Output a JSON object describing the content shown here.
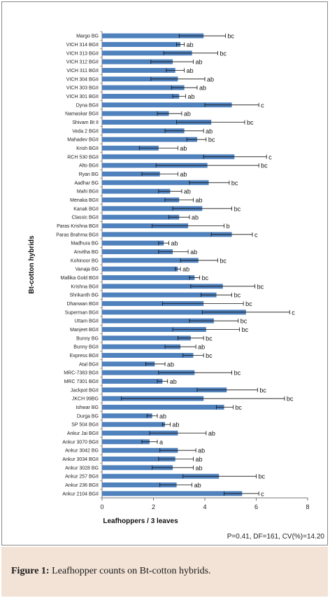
{
  "chart_data": {
    "type": "bar",
    "orientation": "horizontal",
    "ylabel": "Bt-cotton hybrids",
    "xlabel": "Leafhoppers / 3 leaves",
    "xlim": [
      0,
      8
    ],
    "xticks": [
      0,
      2,
      4,
      6,
      8
    ],
    "grid": false,
    "bar_color": "#4f81bd",
    "categories": [
      "Margo BG",
      "VICH 314 BGII",
      "VICH 313 BGII",
      "VICH 312 BGII",
      "VICH 311 BGII",
      "VICH 304 BGII",
      "VICH 303 BGII",
      "VICH 301 BGII",
      "Dyna BGII",
      "Namaskar BGII",
      "Shivam Bt II",
      "Veda 2 BGII",
      "Mahadev BGII",
      "Krish BGII",
      "RCH 530 BGII",
      "Alto BGII",
      "Ryan BG",
      "Aadhar BG",
      "Mahi BGII",
      "Menaka BGII",
      "Kanak BGII",
      "Classic BGII",
      "Paras Krishna BGII",
      "Paras Brahma BGII",
      "Madhura BG",
      "Anvitha BG",
      "Kohinoor BG",
      "Vanaja BG",
      "Mallika Gold BGII",
      "Krishna BGII",
      "Shrikanth BG",
      "Dhanwan BGII",
      "Superman BGII",
      "Uttam BGII",
      "Manjeet BGII",
      "Bunny BG",
      "Bunny BGII",
      "Express BGII",
      "Atal BGII",
      "MRC-7383 BGII",
      "MRC 7301 BGII",
      "Jackpot BGII",
      "JKCH 99BG",
      "Ishwar BG",
      "Durga BG",
      "SP 504 BGII",
      "Ankur Jai BGII",
      "Ankur 3070 BGII",
      "Ankur 3042 BG",
      "Ankur 3034 BGII",
      "Ankur 3028 BG",
      "Ankur 257 BGII",
      "Ankur 236 BGII",
      "Ankur 2104 BGII"
    ],
    "values": [
      3.95,
      3.05,
      3.5,
      2.75,
      2.85,
      2.95,
      3.2,
      3.0,
      5.05,
      2.6,
      4.25,
      3.2,
      3.7,
      2.2,
      5.15,
      4.1,
      2.25,
      4.15,
      2.65,
      3.0,
      3.9,
      3.0,
      3.35,
      5.05,
      2.4,
      2.75,
      3.75,
      2.95,
      3.6,
      4.7,
      4.45,
      3.95,
      5.6,
      4.35,
      4.05,
      3.45,
      3.05,
      3.55,
      2.05,
      3.6,
      2.35,
      4.85,
      3.95,
      4.75,
      1.95,
      2.45,
      2.95,
      1.85,
      2.95,
      2.85,
      2.75,
      4.55,
      2.9,
      5.45
    ],
    "error_low": [
      3.0,
      2.9,
      2.4,
      1.9,
      2.5,
      1.9,
      2.7,
      2.75,
      4.0,
      2.15,
      2.9,
      2.45,
      3.3,
      1.45,
      3.95,
      2.1,
      1.55,
      3.4,
      2.2,
      2.45,
      2.75,
      2.6,
      1.95,
      4.25,
      2.2,
      2.2,
      3.05,
      2.85,
      3.4,
      3.45,
      3.85,
      2.35,
      3.9,
      3.4,
      2.75,
      2.95,
      2.45,
      3.15,
      1.7,
      2.2,
      2.15,
      3.7,
      0.75,
      4.45,
      1.75,
      2.35,
      1.85,
      1.55,
      2.25,
      2.2,
      1.95,
      3.15,
      2.25,
      4.75
    ],
    "error_high": [
      4.8,
      3.2,
      4.5,
      3.55,
      3.2,
      4.0,
      3.7,
      3.25,
      6.1,
      3.1,
      5.55,
      3.95,
      4.05,
      2.95,
      6.4,
      6.1,
      2.95,
      4.95,
      3.1,
      3.55,
      5.05,
      3.4,
      4.75,
      5.85,
      2.6,
      3.35,
      4.5,
      3.05,
      3.8,
      5.95,
      5.05,
      5.5,
      7.3,
      5.3,
      5.35,
      3.95,
      3.65,
      3.95,
      2.45,
      5.05,
      2.55,
      6.05,
      7.1,
      5.1,
      2.15,
      2.65,
      4.05,
      2.15,
      3.65,
      3.55,
      3.55,
      6.0,
      3.5,
      6.1
    ],
    "group_letters": [
      "bc",
      "ab",
      "bc",
      "ab",
      "ab",
      "ab",
      "ab",
      "ab",
      "c",
      "ab",
      "bc",
      "ab",
      "bc",
      "ab",
      "c",
      "bc",
      "ab",
      "bc",
      "ab",
      "ab",
      "bc",
      "ab",
      "b",
      "c",
      "ab",
      "ab",
      "bc",
      "ab",
      "bc",
      "bc",
      "bc",
      "bc",
      "c",
      "bc",
      "bc",
      "bc",
      "ab",
      "bc",
      "ab",
      "bc",
      "ab",
      "bc",
      "bc",
      "bc",
      "ab",
      "ab",
      "ab",
      "a",
      "ab",
      "ab",
      "ab",
      "bc",
      "ab",
      "c"
    ]
  },
  "stats_note": "P=0.41, DF=161, CV(%)=14.20",
  "caption": {
    "label": "Figure 1:",
    "text": " Leafhopper counts on Bt-cotton hybrids."
  },
  "colors": {
    "bar": "#4f81bd",
    "caption_bg": "#f3e3d6"
  }
}
